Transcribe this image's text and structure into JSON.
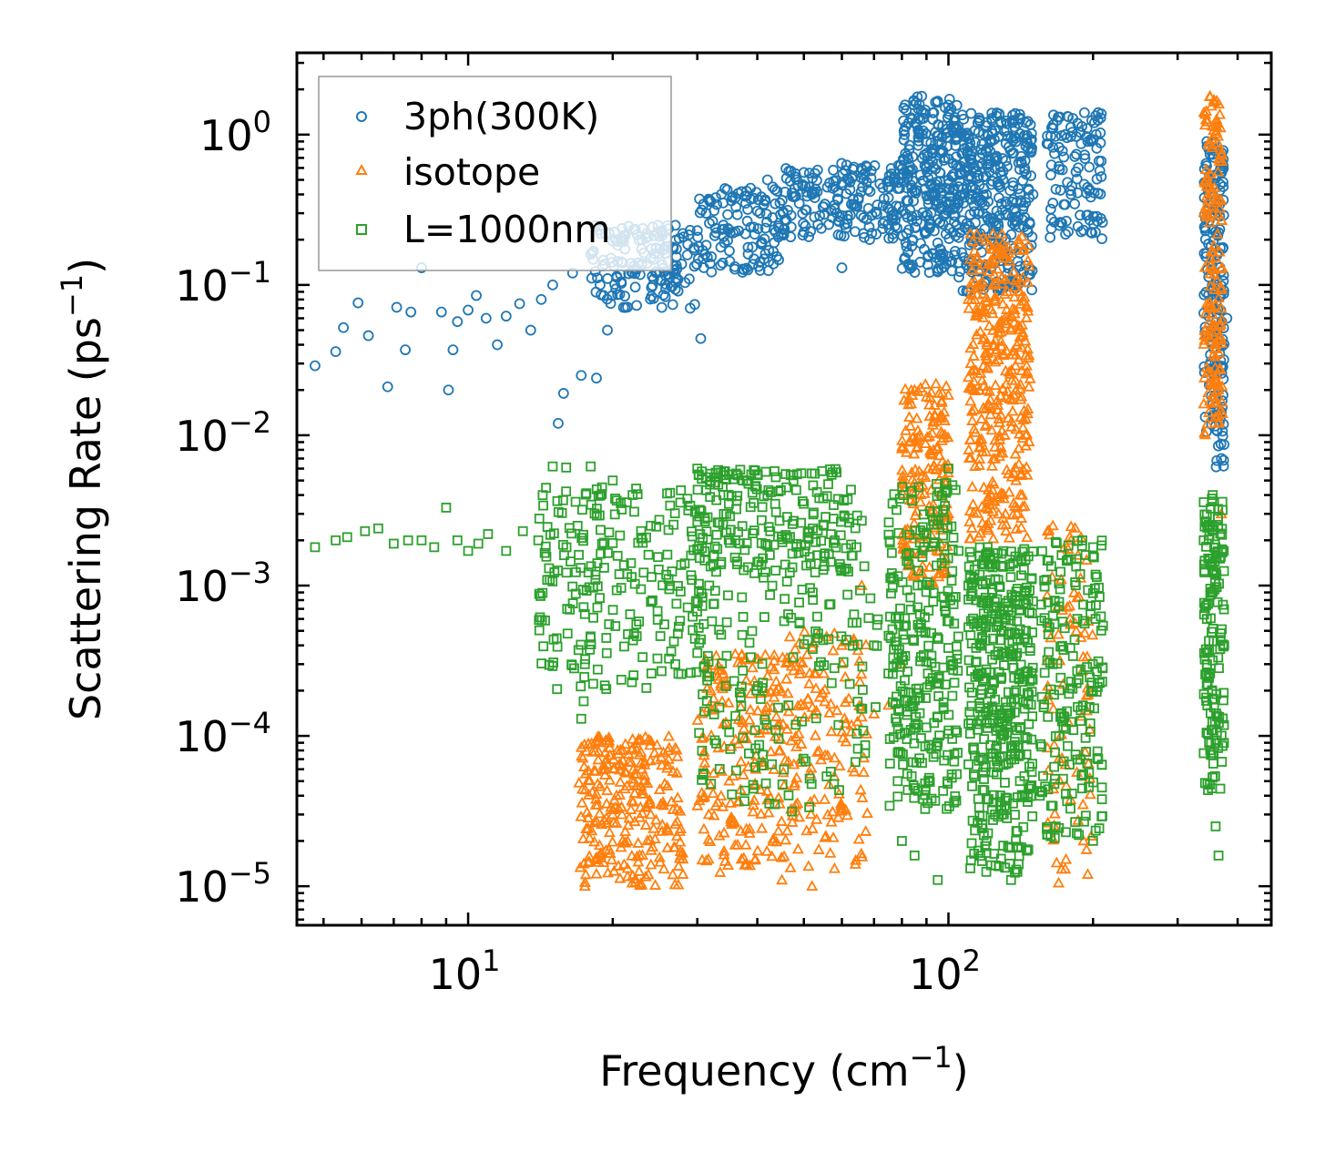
{
  "chart_data": {
    "type": "scatter",
    "xscale": "log",
    "yscale": "log",
    "xlim": [
      4.4,
      470
    ],
    "ylim": [
      5.5e-06,
      3.5
    ],
    "xlabel": {
      "text": "Frequency (cm",
      "sup": "−1",
      "suffix": ")"
    },
    "ylabel": {
      "text": "Scattering Rate (ps",
      "sup": "−1",
      "suffix": ")"
    },
    "xticks": [
      {
        "value": 10,
        "base": "10",
        "exp": "1"
      },
      {
        "value": 100,
        "base": "10",
        "exp": "2"
      }
    ],
    "yticks": [
      {
        "value": 1,
        "base": "10",
        "exp": "0"
      },
      {
        "value": 0.1,
        "base": "10",
        "exp": "−1"
      },
      {
        "value": 0.01,
        "base": "10",
        "exp": "−2"
      },
      {
        "value": 0.001,
        "base": "10",
        "exp": "−3"
      },
      {
        "value": 0.0001,
        "base": "10",
        "exp": "−4"
      },
      {
        "value": 1e-05,
        "base": "10",
        "exp": "−5"
      }
    ],
    "legend": {
      "position": "top-left"
    },
    "series": [
      {
        "name": "3ph(300K)",
        "marker": "circle",
        "color": "#1f77b4",
        "points": [
          [
            4.8,
            0.029
          ],
          [
            5.3,
            0.036
          ],
          [
            5.5,
            0.052
          ],
          [
            5.9,
            0.076
          ],
          [
            6.2,
            0.046
          ],
          [
            6.8,
            0.021
          ],
          [
            7.1,
            0.071
          ],
          [
            7.4,
            0.037
          ],
          [
            7.6,
            0.066
          ],
          [
            8.0,
            0.13
          ],
          [
            8.8,
            0.066
          ],
          [
            9.1,
            0.02
          ],
          [
            9.3,
            0.037
          ],
          [
            9.5,
            0.057
          ],
          [
            10.0,
            0.068
          ],
          [
            10.4,
            0.085
          ],
          [
            10.9,
            0.06
          ],
          [
            11.5,
            0.04
          ],
          [
            12.0,
            0.062
          ],
          [
            12.8,
            0.075
          ],
          [
            13.5,
            0.05
          ],
          [
            14.2,
            0.08
          ],
          [
            15.0,
            0.1
          ],
          [
            15.4,
            0.012
          ],
          [
            15.8,
            0.019
          ],
          [
            16.5,
            0.12
          ],
          [
            17.2,
            0.025
          ],
          [
            18.0,
            0.16
          ],
          [
            18.5,
            0.024
          ],
          [
            19.5,
            0.05
          ],
          [
            21,
            0.14
          ],
          [
            22,
            0.12
          ],
          [
            23,
            0.2
          ],
          [
            24,
            0.15
          ],
          [
            25,
            0.21
          ],
          [
            26,
            0.18
          ],
          [
            27,
            0.12
          ],
          [
            28,
            0.22
          ],
          [
            29,
            0.07
          ],
          [
            30,
            0.23
          ],
          [
            30.5,
            0.044
          ],
          [
            32,
            0.36
          ],
          [
            34,
            0.25
          ],
          [
            36,
            0.38
          ],
          [
            38,
            0.42
          ],
          [
            40,
            0.31
          ],
          [
            42,
            0.5
          ],
          [
            44,
            0.42
          ],
          [
            46,
            0.27
          ],
          [
            48,
            0.55
          ],
          [
            50,
            0.56
          ],
          [
            52,
            0.4
          ],
          [
            55,
            0.33
          ],
          [
            58,
            0.45
          ],
          [
            60,
            0.13
          ],
          [
            62,
            0.5
          ],
          [
            65,
            0.38
          ],
          [
            68,
            0.43
          ],
          [
            72,
            0.47
          ],
          [
            75,
            0.38
          ],
          [
            78,
            0.29
          ],
          [
            82,
            0.51
          ],
          [
            85,
            0.42
          ],
          [
            87,
            1.0
          ],
          [
            88,
            1.8
          ],
          [
            90,
            0.6
          ],
          [
            92,
            0.3
          ],
          [
            95,
            0.9
          ],
          [
            100,
            0.5
          ],
          [
            105,
            0.45
          ],
          [
            110,
            0.09
          ],
          [
            112,
            0.4
          ],
          [
            118,
            0.3
          ],
          [
            122,
            0.9
          ],
          [
            126,
            0.7
          ],
          [
            130,
            0.5
          ],
          [
            135,
            0.95
          ],
          [
            140,
            0.65
          ],
          [
            145,
            1.2
          ],
          [
            150,
            0.4
          ],
          [
            165,
            0.35
          ],
          [
            175,
            1.0
          ],
          [
            180,
            0.4
          ],
          [
            195,
            0.9
          ],
          [
            205,
            1.4
          ],
          [
            345,
            0.9
          ],
          [
            355,
            0.3
          ],
          [
            360,
            0.1
          ],
          [
            365,
            0.02
          ],
          [
            370,
            0.007
          ],
          [
            380,
            0.06
          ]
        ],
        "bands": [
          {
            "x": [
              18,
              30
            ],
            "y": [
              0.07,
              0.25
            ],
            "n": 160
          },
          {
            "x": [
              30,
              45
            ],
            "y": [
              0.12,
              0.45
            ],
            "n": 120
          },
          {
            "x": [
              45,
              80
            ],
            "y": [
              0.2,
              0.65
            ],
            "n": 180
          },
          {
            "x": [
              80,
              105
            ],
            "y": [
              0.12,
              1.8
            ],
            "n": 280
          },
          {
            "x": [
              105,
              150
            ],
            "y": [
              0.09,
              1.4
            ],
            "n": 340
          },
          {
            "x": [
              160,
              210
            ],
            "y": [
              0.2,
              1.4
            ],
            "n": 110
          },
          {
            "x": [
              340,
              375
            ],
            "y": [
              0.006,
              0.9
            ],
            "n": 180
          }
        ]
      },
      {
        "name": "isotope",
        "marker": "triangle",
        "color": "#ff7f0e",
        "points": [
          [
            17.5,
            1e-05
          ],
          [
            18.5,
            1.5e-05
          ],
          [
            20,
            3e-05
          ],
          [
            21,
            8e-05
          ],
          [
            22,
            9.5e-05
          ],
          [
            23,
            6e-05
          ],
          [
            24,
            3e-05
          ],
          [
            26,
            1.8e-05
          ],
          [
            28,
            1.2e-05
          ],
          [
            31,
            4e-05
          ],
          [
            32,
            0.0002
          ],
          [
            34,
            0.00012
          ],
          [
            36,
            0.00035
          ],
          [
            38,
            1.4e-05
          ],
          [
            42,
            0.00025
          ],
          [
            45,
            1.1e-05
          ],
          [
            50,
            0.00016
          ],
          [
            52,
            1e-05
          ],
          [
            55,
            0.00026
          ],
          [
            60,
            0.0004
          ],
          [
            64,
            1.4e-05
          ],
          [
            66,
            0.001
          ],
          [
            70,
            0.00014
          ],
          [
            75,
            0.00016
          ],
          [
            80,
            0.0003
          ],
          [
            85,
            0.02
          ],
          [
            90,
            0.018
          ],
          [
            100,
            0.003
          ],
          [
            110,
            0.08
          ],
          [
            115,
            0.15
          ],
          [
            120,
            0.02
          ],
          [
            125,
            0.08
          ],
          [
            130,
            0.15
          ],
          [
            135,
            0.05
          ],
          [
            140,
            0.2
          ],
          [
            145,
            0.01
          ],
          [
            165,
            0.0025
          ],
          [
            175,
            1.3e-05
          ],
          [
            180,
            0.002
          ],
          [
            195,
            1.2e-05
          ],
          [
            345,
            0.5
          ],
          [
            350,
            1.8
          ],
          [
            355,
            0.3
          ],
          [
            360,
            0.05
          ],
          [
            365,
            0.02
          ],
          [
            370,
            0.003
          ]
        ],
        "bands": [
          {
            "x": [
              17,
              28
            ],
            "y": [
              1e-05,
              0.0001
            ],
            "n": 260
          },
          {
            "x": [
              30,
              45
            ],
            "y": [
              1.2e-05,
              0.00035
            ],
            "n": 180
          },
          {
            "x": [
              45,
              68
            ],
            "y": [
              1.3e-05,
              0.0005
            ],
            "n": 150
          },
          {
            "x": [
              80,
              100
            ],
            "y": [
              0.001,
              0.022
            ],
            "n": 180
          },
          {
            "x": [
              110,
              148
            ],
            "y": [
              0.002,
              0.22
            ],
            "n": 360
          },
          {
            "x": [
              160,
              200
            ],
            "y": [
              1e-05,
              0.0025
            ],
            "n": 80
          },
          {
            "x": [
              340,
              372
            ],
            "y": [
              0.01,
              1.8
            ],
            "n": 160
          }
        ]
      },
      {
        "name": "L=1000nm",
        "marker": "square",
        "color": "#2ca02c",
        "points": [
          [
            4.8,
            0.0018
          ],
          [
            5.3,
            0.002
          ],
          [
            5.6,
            0.0021
          ],
          [
            6.1,
            0.0023
          ],
          [
            6.5,
            0.0024
          ],
          [
            7.0,
            0.0019
          ],
          [
            7.5,
            0.002
          ],
          [
            8.0,
            0.002
          ],
          [
            8.5,
            0.0018
          ],
          [
            9.0,
            0.0033
          ],
          [
            9.5,
            0.002
          ],
          [
            10.0,
            0.0017
          ],
          [
            10.5,
            0.0019
          ],
          [
            11.0,
            0.0022
          ],
          [
            12.0,
            0.0017
          ],
          [
            13.0,
            0.0023
          ],
          [
            14.0,
            0.002
          ],
          [
            15.0,
            0.0062
          ],
          [
            16.0,
            0.0061
          ],
          [
            17.0,
            0.0016
          ],
          [
            17.5,
            0.0003
          ],
          [
            18.0,
            0.0062
          ],
          [
            19.0,
            0.0045
          ],
          [
            20.0,
            0.005
          ],
          [
            17.4,
            0.00017
          ],
          [
            17.2,
            0.00013
          ],
          [
            22,
            0.004
          ],
          [
            24,
            0.0025
          ],
          [
            27,
            0.0003
          ],
          [
            29,
            0.0034
          ],
          [
            30,
            0.006
          ],
          [
            32,
            0.005
          ],
          [
            34,
            0.004
          ],
          [
            36,
            0.002
          ],
          [
            38,
            0.005
          ],
          [
            40,
            0.0055
          ],
          [
            42,
            0.004
          ],
          [
            46,
            0.0045
          ],
          [
            50,
            0.0035
          ],
          [
            55,
            0.0025
          ],
          [
            58,
            0.002
          ],
          [
            62,
            0.0028
          ],
          [
            66,
            0.0027
          ],
          [
            70,
            0.0004
          ],
          [
            75,
            0.00026
          ],
          [
            78,
            0.0004
          ],
          [
            80,
            2e-05
          ],
          [
            85,
            1.6e-05
          ],
          [
            90,
            0.0022
          ],
          [
            95,
            1.1e-05
          ],
          [
            100,
            0.006
          ],
          [
            105,
            0.0017
          ],
          [
            110,
            0.001
          ],
          [
            115,
            0.00011
          ],
          [
            120,
            2e-05
          ],
          [
            125,
            3e-05
          ],
          [
            130,
            0.0001
          ],
          [
            135,
            1.1e-05
          ],
          [
            140,
            1.4e-05
          ],
          [
            145,
            0.0005
          ],
          [
            155,
            4e-05
          ],
          [
            165,
            0.0003
          ],
          [
            170,
            0.0001
          ],
          [
            180,
            0.0015
          ],
          [
            190,
            0.002
          ],
          [
            200,
            0.0002
          ],
          [
            205,
            7e-05
          ],
          [
            340,
            0.002
          ],
          [
            345,
            0.0003
          ],
          [
            350,
            0.0015
          ],
          [
            355,
            0.004
          ],
          [
            360,
            2.5e-05
          ],
          [
            365,
            1.6e-05
          ],
          [
            375,
            0.0004
          ]
        ],
        "bands": [
          {
            "x": [
              14,
              32
            ],
            "y": [
              0.0002,
              0.0045
            ],
            "n": 240
          },
          {
            "x": [
              30,
              65
            ],
            "y": [
              0.0012,
              0.006
            ],
            "n": 200
          },
          {
            "x": [
              30,
              72
            ],
            "y": [
              3e-05,
              0.0015
            ],
            "n": 160
          },
          {
            "x": [
              75,
              105
            ],
            "y": [
              3e-05,
              0.005
            ],
            "n": 280
          },
          {
            "x": [
              110,
              150
            ],
            "y": [
              1.2e-05,
              0.0018
            ],
            "n": 420
          },
          {
            "x": [
              155,
              210
            ],
            "y": [
              2e-05,
              0.002
            ],
            "n": 180
          },
          {
            "x": [
              340,
              375
            ],
            "y": [
              4e-05,
              0.004
            ],
            "n": 150
          }
        ]
      }
    ]
  }
}
